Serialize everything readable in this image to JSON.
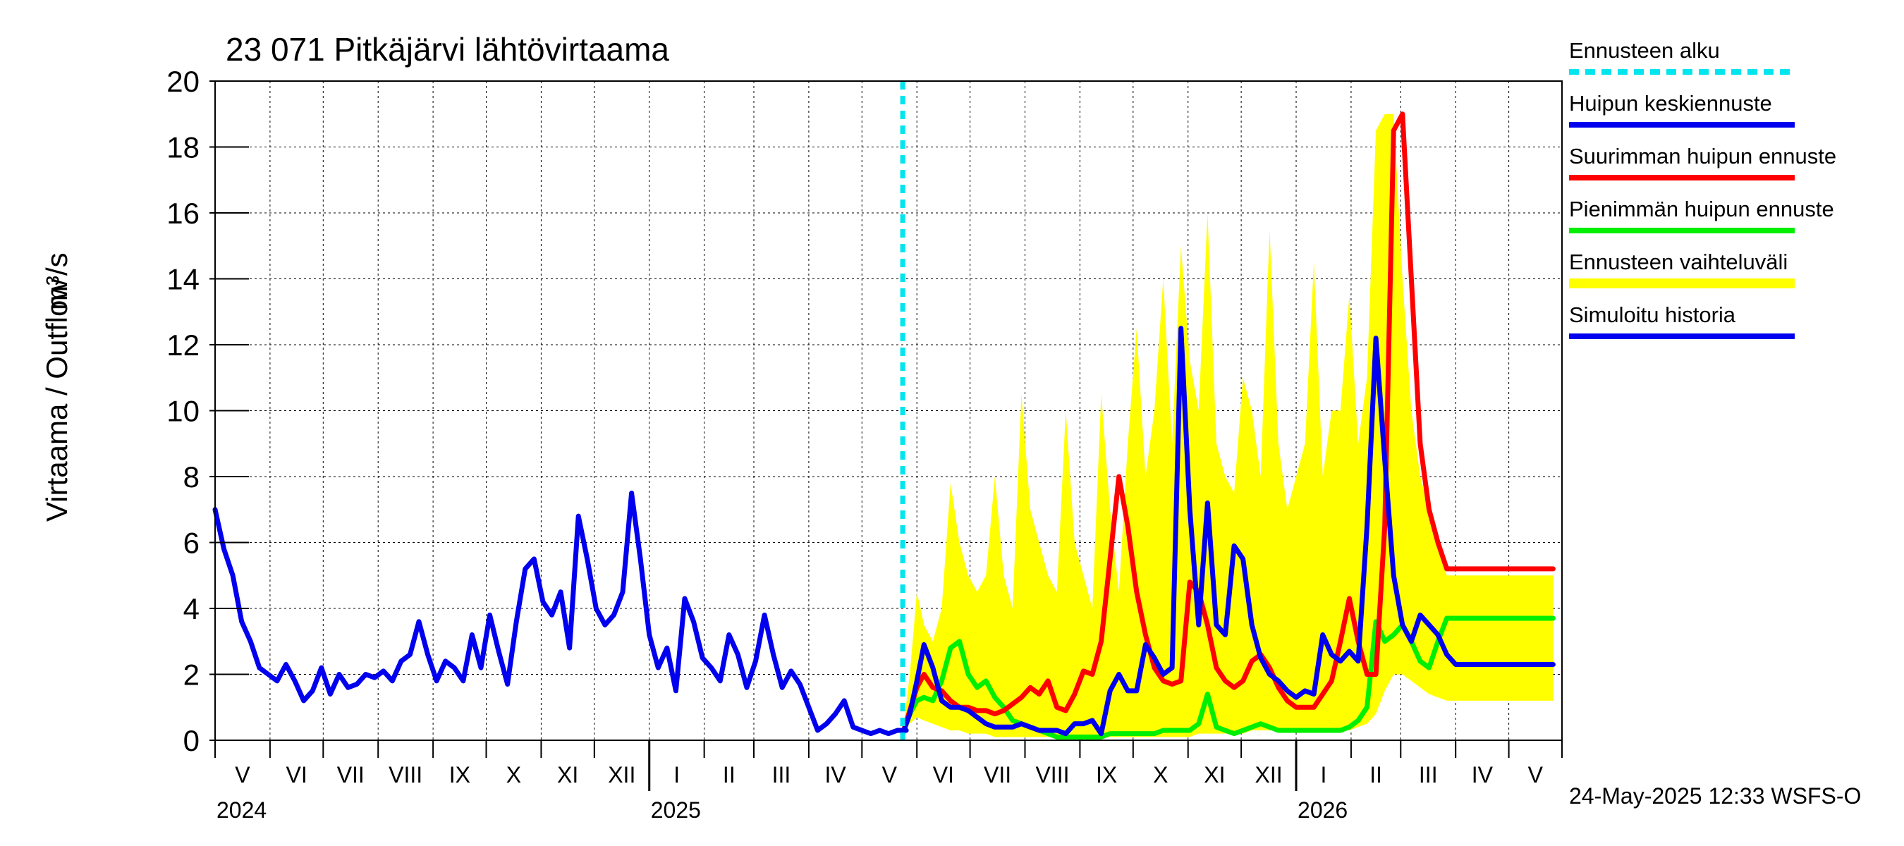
{
  "chart_data": {
    "type": "line",
    "title": "23 071 Pitkäjärvi lähtövirtaama",
    "ylabel_left": "Virtaama / Outflow",
    "ylabel_unit": "m³/s",
    "ylim": [
      0,
      20
    ],
    "yticks": [
      "0",
      "2",
      "4",
      "6",
      "8",
      "10",
      "12",
      "14",
      "16",
      "18",
      "20"
    ],
    "grid": true,
    "months": [
      "V",
      "VI",
      "VII",
      "VIII",
      "IX",
      "X",
      "XI",
      "XII",
      "I",
      "II",
      "III",
      "IV",
      "V",
      "VI",
      "VII",
      "VIII",
      "IX",
      "X",
      "XI",
      "XII",
      "I",
      "II",
      "III",
      "IV",
      "V"
    ],
    "years": [
      "2024",
      "2025",
      "2026"
    ],
    "x_start": "2024-05-01",
    "x_end": "2026-05-31",
    "forecast_start": "2025-05-24",
    "legend_position": "right",
    "footer": "24-May-2025 12:33 WSFS-O",
    "legend": [
      {
        "label": "Ennusteen alku",
        "color": "#00e5ee",
        "style": "dashed"
      },
      {
        "label": "Huipun keskiennuste",
        "color": "#0000ee",
        "style": "solid"
      },
      {
        "label": "Suurimman huipun ennuste",
        "color": "#ff0000",
        "style": "solid"
      },
      {
        "label": "Pienimmän huipun ennuste",
        "color": "#00ee00",
        "style": "solid"
      },
      {
        "label": "Ennusteen vaihteluväli",
        "color": "#ffff00",
        "style": "band"
      },
      {
        "label": "Simuloitu historia",
        "color": "#0000ee",
        "style": "solid"
      }
    ],
    "series": [
      {
        "name": "Simuloitu historia",
        "color": "#0000ee",
        "x": [
          0,
          5,
          10,
          15,
          20,
          25,
          30,
          35,
          40,
          45,
          50,
          55,
          60,
          65,
          70,
          75,
          80,
          85,
          90,
          95,
          100,
          105,
          110,
          115,
          120,
          125,
          130,
          135,
          140,
          145,
          150,
          155,
          160,
          165,
          170,
          175,
          180,
          185,
          190,
          195,
          200,
          205,
          210,
          215,
          220,
          225,
          230,
          235,
          240,
          245,
          250,
          255,
          260,
          265,
          270,
          275,
          280,
          285,
          290,
          295,
          300,
          305,
          310,
          315,
          320,
          325,
          330,
          335,
          340,
          345,
          350,
          355,
          360,
          365,
          370,
          375,
          380,
          385,
          390
        ],
        "values": [
          7.0,
          5.8,
          5.0,
          3.6,
          3.0,
          2.2,
          2.0,
          1.8,
          2.3,
          1.8,
          1.2,
          1.5,
          2.2,
          1.4,
          2.0,
          1.6,
          1.7,
          2.0,
          1.9,
          2.1,
          1.8,
          2.4,
          2.6,
          3.6,
          2.6,
          1.8,
          2.4,
          2.2,
          1.8,
          3.2,
          2.2,
          3.8,
          2.7,
          1.7,
          3.6,
          5.2,
          5.5,
          4.2,
          3.8,
          4.5,
          2.8,
          6.8,
          5.5,
          4.0,
          3.5,
          3.8,
          4.5,
          7.5,
          5.5,
          3.2,
          2.2,
          2.8,
          1.5,
          4.3,
          3.6,
          2.5,
          2.2,
          1.8,
          3.2,
          2.6,
          1.6,
          2.4,
          3.8,
          2.6,
          1.6,
          2.1,
          1.7,
          1.0,
          0.3,
          0.5,
          0.8,
          1.2,
          0.4,
          0.3,
          0.2,
          0.3,
          0.2,
          0.3,
          0.3
        ]
      },
      {
        "name": "Huipun keskiennuste",
        "color": "#0000ee",
        "x": [
          388,
          392,
          396,
          400,
          405,
          410,
          415,
          420,
          425,
          430,
          435,
          440,
          445,
          450,
          455,
          460,
          465,
          470,
          475,
          480,
          485,
          490,
          495,
          500,
          505,
          510,
          515,
          520,
          525,
          530,
          535,
          540,
          545,
          550,
          555,
          560,
          565,
          570,
          575,
          580,
          585,
          590,
          595,
          600,
          605,
          610,
          615,
          620,
          625,
          630,
          635,
          640,
          645,
          650,
          655,
          660,
          665,
          670,
          675,
          680,
          685,
          690,
          695,
          700,
          705,
          710,
          715,
          720,
          725,
          730,
          735,
          740,
          745,
          750,
          755
        ],
        "values": [
          0.2,
          0.8,
          1.8,
          2.9,
          2.2,
          1.2,
          1.0,
          1.0,
          0.9,
          0.7,
          0.5,
          0.4,
          0.4,
          0.4,
          0.5,
          0.4,
          0.3,
          0.3,
          0.3,
          0.2,
          0.5,
          0.5,
          0.6,
          0.2,
          1.5,
          2.0,
          1.5,
          1.5,
          2.9,
          2.5,
          2.0,
          2.2,
          12.5,
          7.0,
          3.5,
          7.2,
          3.5,
          3.2,
          5.9,
          5.5,
          3.5,
          2.5,
          2.0,
          1.8,
          1.5,
          1.3,
          1.5,
          1.4,
          3.2,
          2.6,
          2.4,
          2.7,
          2.4,
          6.5,
          12.2,
          8.5,
          5.0,
          3.5,
          3.0,
          3.8,
          3.5,
          3.2,
          2.6,
          2.3,
          2.3,
          2.3,
          2.3,
          2.3,
          2.3,
          2.3,
          2.3,
          2.3,
          2.3,
          2.3,
          2.3
        ]
      },
      {
        "name": "Suurimman huipun ennuste",
        "color": "#ff0000",
        "x": [
          388,
          392,
          396,
          400,
          405,
          410,
          415,
          420,
          425,
          430,
          435,
          440,
          445,
          450,
          455,
          460,
          465,
          470,
          475,
          480,
          485,
          490,
          495,
          500,
          505,
          510,
          515,
          520,
          525,
          530,
          535,
          540,
          545,
          550,
          555,
          560,
          565,
          570,
          575,
          580,
          585,
          590,
          595,
          600,
          605,
          610,
          615,
          620,
          625,
          630,
          635,
          640,
          645,
          650,
          655,
          660,
          665,
          670,
          675,
          680,
          685,
          690,
          695,
          700,
          705,
          710,
          715,
          720,
          725,
          730,
          735,
          740,
          745,
          750,
          755
        ],
        "values": [
          0.2,
          0.9,
          1.6,
          2.0,
          1.6,
          1.5,
          1.2,
          1.0,
          1.0,
          0.9,
          0.9,
          0.8,
          0.9,
          1.1,
          1.3,
          1.6,
          1.4,
          1.8,
          1.0,
          0.9,
          1.4,
          2.1,
          2.0,
          3.0,
          5.5,
          8.0,
          6.5,
          4.5,
          3.2,
          2.2,
          1.8,
          1.7,
          1.8,
          4.8,
          4.5,
          3.5,
          2.2,
          1.8,
          1.6,
          1.8,
          2.4,
          2.6,
          2.2,
          1.6,
          1.2,
          1.0,
          1.0,
          1.0,
          1.4,
          1.8,
          3.0,
          4.3,
          3.0,
          2.0,
          2.0,
          6.5,
          18.5,
          19.0,
          14.0,
          9.0,
          7.0,
          6.0,
          5.2,
          5.2,
          5.2,
          5.2,
          5.2,
          5.2,
          5.2,
          5.2,
          5.2,
          5.2,
          5.2,
          5.2,
          5.2
        ]
      },
      {
        "name": "Pienimmän huipun ennuste",
        "color": "#00ee00",
        "x": [
          388,
          392,
          396,
          400,
          405,
          410,
          415,
          420,
          425,
          430,
          435,
          440,
          445,
          450,
          455,
          460,
          465,
          470,
          475,
          480,
          485,
          490,
          495,
          500,
          505,
          510,
          515,
          520,
          525,
          530,
          535,
          540,
          545,
          550,
          555,
          560,
          565,
          570,
          575,
          580,
          585,
          590,
          595,
          600,
          605,
          610,
          615,
          620,
          625,
          630,
          635,
          640,
          645,
          650,
          655,
          660,
          665,
          670,
          675,
          680,
          685,
          690,
          695,
          700,
          705,
          710,
          715,
          720,
          725,
          730,
          735,
          740,
          745,
          750,
          755
        ],
        "values": [
          0.2,
          0.8,
          1.2,
          1.3,
          1.2,
          1.8,
          2.8,
          3.0,
          2.0,
          1.6,
          1.8,
          1.3,
          1.0,
          0.6,
          0.5,
          0.4,
          0.3,
          0.2,
          0.1,
          0.1,
          0.1,
          0.1,
          0.1,
          0.1,
          0.2,
          0.2,
          0.2,
          0.2,
          0.2,
          0.2,
          0.3,
          0.3,
          0.3,
          0.3,
          0.5,
          1.4,
          0.4,
          0.3,
          0.2,
          0.3,
          0.4,
          0.5,
          0.4,
          0.3,
          0.3,
          0.3,
          0.3,
          0.3,
          0.3,
          0.3,
          0.3,
          0.4,
          0.6,
          1.0,
          3.6,
          3.0,
          3.2,
          3.5,
          3.0,
          2.4,
          2.2,
          3.0,
          3.7,
          3.7,
          3.7,
          3.7,
          3.7,
          3.7,
          3.7,
          3.7,
          3.7,
          3.7,
          3.7,
          3.7,
          3.7
        ]
      }
    ],
    "band": {
      "name": "Ennusteen vaihteluväli",
      "x": [
        388,
        392,
        396,
        400,
        405,
        410,
        415,
        420,
        425,
        430,
        435,
        440,
        445,
        450,
        455,
        460,
        465,
        470,
        475,
        480,
        485,
        490,
        495,
        500,
        505,
        510,
        515,
        520,
        525,
        530,
        535,
        540,
        545,
        550,
        555,
        560,
        565,
        570,
        575,
        580,
        585,
        590,
        595,
        600,
        605,
        610,
        615,
        620,
        625,
        630,
        635,
        640,
        645,
        650,
        655,
        660,
        665,
        670,
        675,
        680,
        685,
        690,
        695,
        700,
        705,
        710,
        715,
        720,
        725,
        730,
        735,
        740,
        745,
        750,
        755
      ],
      "lower": [
        0.2,
        0.5,
        0.7,
        0.6,
        0.5,
        0.4,
        0.3,
        0.3,
        0.2,
        0.2,
        0.2,
        0.1,
        0.1,
        0.1,
        0.1,
        0.1,
        0.1,
        0.1,
        0.1,
        0.1,
        0.1,
        0.1,
        0.1,
        0.1,
        0.1,
        0.1,
        0.1,
        0.1,
        0.1,
        0.1,
        0.1,
        0.1,
        0.1,
        0.1,
        0.2,
        0.2,
        0.2,
        0.2,
        0.2,
        0.2,
        0.3,
        0.3,
        0.3,
        0.3,
        0.3,
        0.3,
        0.3,
        0.3,
        0.3,
        0.3,
        0.3,
        0.3,
        0.4,
        0.5,
        0.8,
        1.5,
        2.0,
        2.0,
        1.8,
        1.6,
        1.4,
        1.3,
        1.2,
        1.2,
        1.2,
        1.2,
        1.2,
        1.2,
        1.2,
        1.2,
        1.2,
        1.2,
        1.2,
        1.2,
        1.2
      ],
      "upper": [
        0.2,
        2.0,
        4.5,
        3.5,
        3.0,
        4.0,
        7.8,
        6.0,
        5.0,
        4.5,
        5.0,
        8.0,
        5.0,
        4.0,
        10.5,
        7.0,
        6.0,
        5.0,
        4.5,
        10.0,
        6.0,
        5.0,
        4.0,
        10.5,
        7.0,
        4.5,
        9.0,
        12.5,
        8.0,
        10.0,
        14.0,
        9.0,
        15.0,
        11.5,
        10.0,
        16.0,
        9.0,
        8.0,
        7.5,
        11.0,
        10.0,
        8.0,
        15.5,
        9.0,
        7.0,
        8.0,
        9.0,
        14.5,
        8.0,
        10.0,
        10.0,
        13.5,
        9.0,
        11.0,
        18.5,
        19.0,
        19.0,
        14.0,
        10.0,
        8.0,
        7.0,
        6.0,
        5.0,
        5.0,
        5.0,
        5.0,
        5.0,
        5.0,
        5.0,
        5.0,
        5.0,
        5.0,
        5.0,
        5.0,
        5.0
      ]
    }
  }
}
